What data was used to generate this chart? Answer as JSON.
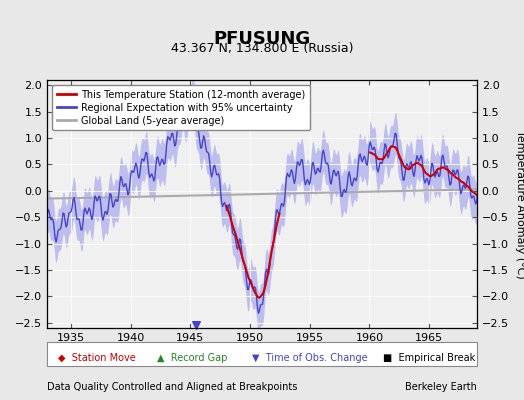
{
  "title": "PFUSUNG",
  "subtitle": "43.367 N, 134.800 E (Russia)",
  "xlabel_bottom": "Data Quality Controlled and Aligned at Breakpoints",
  "xlabel_right": "Berkeley Earth",
  "ylabel": "Temperature Anomaly (°C)",
  "xlim": [
    1933,
    1969
  ],
  "ylim": [
    -2.6,
    2.1
  ],
  "xticks": [
    1935,
    1940,
    1945,
    1950,
    1955,
    1960,
    1965
  ],
  "yticks": [
    -2.5,
    -2,
    -1.5,
    -1,
    -0.5,
    0,
    0.5,
    1,
    1.5,
    2
  ],
  "bg_color": "#e8e8e8",
  "plot_bg_color": "#f0f0f0",
  "regional_color": "#4444cc",
  "regional_fill_color": "#aaaaee",
  "station_color": "#cc0000",
  "global_color": "#aaaaaa",
  "obs_change_color": "#4444cc",
  "time_obs_x": 1945.5,
  "time_obs_y": -2.55
}
